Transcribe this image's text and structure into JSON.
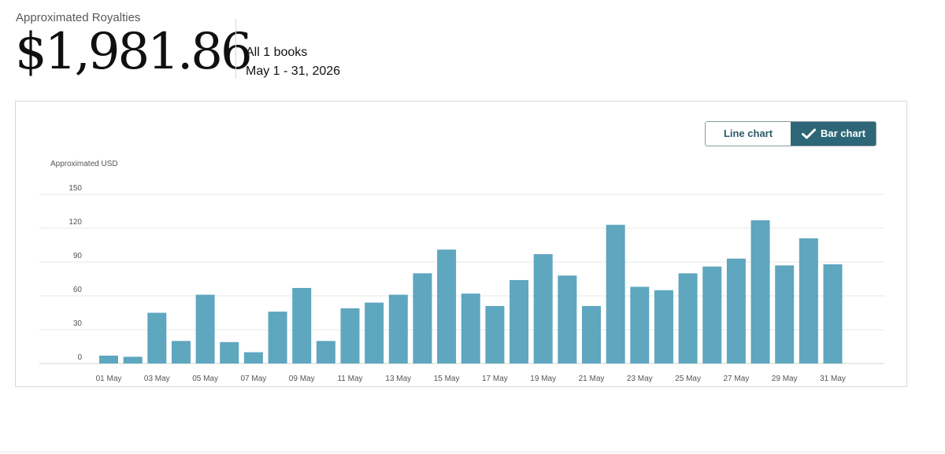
{
  "header": {
    "label": "Approximated Royalties",
    "amount": "$1,981.86",
    "books": "All 1 books",
    "date_range": "May 1 - 31, 2026"
  },
  "toggle": {
    "line_label": "Line chart",
    "bar_label": "Bar chart",
    "selected": "bar"
  },
  "chart_data": {
    "type": "bar",
    "ylabel": "Approximated USD",
    "ylim": [
      0,
      150
    ],
    "yticks": [
      0,
      30,
      60,
      90,
      120,
      150
    ],
    "grid": true,
    "bar_color": "#5fa6bf",
    "categories": [
      "01 May",
      "02 May",
      "03 May",
      "04 May",
      "05 May",
      "06 May",
      "07 May",
      "08 May",
      "09 May",
      "10 May",
      "11 May",
      "12 May",
      "13 May",
      "14 May",
      "15 May",
      "16 May",
      "17 May",
      "18 May",
      "19 May",
      "20 May",
      "21 May",
      "22 May",
      "23 May",
      "24 May",
      "25 May",
      "26 May",
      "27 May",
      "28 May",
      "29 May",
      "30 May",
      "31 May"
    ],
    "xtick_labels": [
      "01 May",
      "03 May",
      "05 May",
      "07 May",
      "09 May",
      "11 May",
      "13 May",
      "15 May",
      "17 May",
      "19 May",
      "21 May",
      "23 May",
      "25 May",
      "27 May",
      "29 May",
      "31 May"
    ],
    "values": [
      7,
      6,
      45,
      20,
      61,
      19,
      10,
      46,
      67,
      20,
      49,
      54,
      61,
      80,
      101,
      62,
      51,
      74,
      97,
      78,
      51,
      123,
      68,
      65,
      80,
      86,
      93,
      127,
      87,
      111,
      88
    ]
  }
}
